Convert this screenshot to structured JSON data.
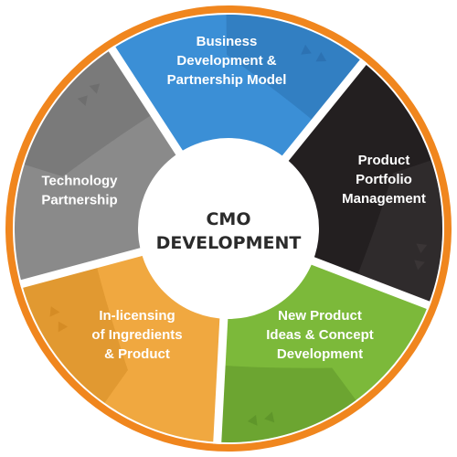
{
  "center": {
    "lines": [
      "CMO",
      "DEVELOPMENT"
    ]
  },
  "segments": [
    {
      "id": "business",
      "lines": [
        "Business",
        "Development &",
        "Partnership Model"
      ],
      "color": "#3b8fd6",
      "shade": "#2c72b3"
    },
    {
      "id": "product-portfolio",
      "lines": [
        "Product",
        "Portfolio",
        "Management"
      ],
      "color": "#231f20",
      "shade": "#3a3536"
    },
    {
      "id": "new-product",
      "lines": [
        "New Product",
        "Ideas & Concept",
        "Development"
      ],
      "color": "#7cb93a",
      "shade": "#5f962a"
    },
    {
      "id": "in-licensing",
      "lines": [
        "In-licensing",
        "of Ingredients",
        "& Product"
      ],
      "color": "#f0a840",
      "shade": "#d58c25"
    },
    {
      "id": "technology",
      "lines": [
        "Technology",
        "Partnership"
      ],
      "color": "#8a8a8a",
      "shade": "#6e6e6e"
    }
  ],
  "colors": {
    "ring": "#f0861e",
    "divider": "#ffffff",
    "center_fill": "#ffffff"
  }
}
